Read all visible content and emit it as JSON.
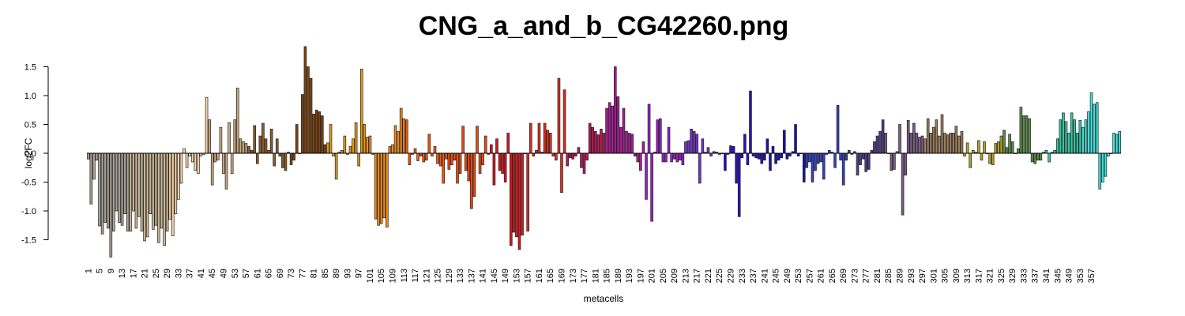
{
  "chart_data": {
    "type": "bar",
    "title": "CNG_a_and_b_CG42260.png",
    "xlabel": "metacells",
    "ylabel": "log2FC",
    "ylim": [
      -1.8,
      1.9
    ],
    "yticks": [
      -1.5,
      -1.0,
      -0.5,
      0.0,
      0.5,
      1.0,
      1.5
    ],
    "ytick_labels": [
      "-1.5",
      "-1.0",
      "-0.5",
      "0.0",
      "0.5",
      "1.0",
      "1.5"
    ],
    "xtick_labels": [
      "1",
      "5",
      "9",
      "13",
      "17",
      "21",
      "25",
      "29",
      "33",
      "37",
      "41",
      "45",
      "49",
      "53",
      "57",
      "61",
      "65",
      "69",
      "73",
      "77",
      "81",
      "85",
      "89",
      "93",
      "97",
      "101",
      "105",
      "109",
      "113",
      "117",
      "121",
      "125",
      "129",
      "133",
      "137",
      "141",
      "145",
      "149",
      "153",
      "157",
      "161",
      "165",
      "169",
      "173",
      "177",
      "181",
      "185",
      "189",
      "193",
      "197",
      "201",
      "205",
      "209",
      "213",
      "217",
      "221",
      "225",
      "229",
      "233",
      "237",
      "241",
      "245",
      "249",
      "253",
      "257",
      "261",
      "265",
      "269",
      "273",
      "277",
      "281",
      "285",
      "289",
      "293",
      "297",
      "301",
      "305",
      "309",
      "313",
      "317",
      "321",
      "325",
      "329",
      "333",
      "337",
      "341",
      "345",
      "349",
      "353",
      "357"
    ],
    "grid": false,
    "legend": "none",
    "values": [
      -0.1,
      -0.88,
      -0.45,
      -0.12,
      -1.26,
      -1.4,
      -1.2,
      -1.3,
      -1.8,
      -1.35,
      -1.0,
      -1.2,
      -1.25,
      -1.05,
      -1.35,
      -1.35,
      -1.0,
      -1.3,
      -1.1,
      -1.35,
      -1.52,
      -1.45,
      -1.05,
      -1.32,
      -1.25,
      -1.55,
      -1.3,
      -1.6,
      -1.35,
      -1.15,
      -1.43,
      -1.05,
      -0.8,
      -0.52,
      0.08,
      -0.25,
      -0.05,
      -0.15,
      -0.3,
      -0.35,
      -0.05,
      -0.02,
      0.97,
      0.58,
      -0.55,
      -0.15,
      -0.12,
      0.45,
      -0.35,
      -0.62,
      0.53,
      -0.35,
      0.58,
      1.13,
      0.25,
      0.2,
      0.17,
      0.12,
      0.05,
      0.48,
      -0.18,
      0.3,
      0.52,
      0.25,
      0.05,
      0.42,
      -0.22,
      0.25,
      -0.05,
      -0.25,
      -0.3,
      0.02,
      -0.2,
      -0.12,
      0.5,
      0.0,
      1.02,
      1.85,
      1.5,
      1.3,
      0.68,
      0.75,
      0.72,
      0.65,
      0.15,
      0.18,
      0.5,
      -0.05,
      -0.45,
      0.02,
      0.05,
      0.3,
      -0.02,
      0.12,
      0.25,
      0.53,
      -0.22,
      1.46,
      0.5,
      0.28,
      0.3,
      -0.02,
      -1.14,
      -1.25,
      -1.22,
      -1.12,
      -1.28,
      0.12,
      0.15,
      0.48,
      0.38,
      0.78,
      0.6,
      0.58,
      -0.2,
      -0.02,
      0.08,
      -0.13,
      -0.05,
      -0.15,
      -0.12,
      0.33,
      -0.05,
      0.12,
      -0.18,
      -0.22,
      -0.52,
      -0.1,
      -0.28,
      -0.2,
      -0.12,
      -0.52,
      -0.35,
      0.47,
      -0.3,
      -0.48,
      -0.96,
      -0.75,
      0.47,
      -0.35,
      -0.2,
      0.3,
      -0.02,
      0.15,
      -0.55,
      0.25,
      -0.3,
      -0.35,
      -0.5,
      0.35,
      -1.6,
      -1.37,
      -1.45,
      -1.67,
      -1.42,
      0.0,
      -1.35,
      0.52,
      -0.05,
      0.05,
      0.52,
      0.02,
      0.52,
      0.4,
      0.35,
      -0.05,
      -0.12,
      1.3,
      -0.68,
      1.1,
      -0.22,
      -0.08,
      -0.1,
      -0.05,
      0.1,
      -0.25,
      -0.35,
      -0.12,
      0.52,
      0.45,
      0.38,
      0.32,
      0.42,
      0.35,
      0.78,
      0.88,
      0.82,
      1.5,
      0.98,
      0.45,
      0.78,
      0.38,
      0.35,
      0.33,
      -0.05,
      -0.15,
      -0.3,
      0.2,
      -0.8,
      0.85,
      -1.18,
      0.02,
      0.58,
      0.6,
      -0.15,
      -0.15,
      0.45,
      -0.15,
      -0.1,
      -0.15,
      -0.12,
      -0.2,
      0.2,
      0.22,
      0.42,
      0.38,
      0.33,
      -0.52,
      0.25,
      0.02,
      0.1,
      -0.05,
      0.03,
      0.02,
      -0.02,
      0.0,
      -0.3,
      -0.02,
      0.13,
      0.12,
      -0.52,
      -1.1,
      -0.08,
      0.33,
      -0.2,
      1.08,
      -0.05,
      -0.08,
      -0.1,
      -0.18,
      -0.12,
      0.25,
      -0.3,
      0.12,
      -0.18,
      -0.12,
      -0.08,
      0.4,
      -0.1,
      -0.05,
      0.03,
      0.5,
      -0.05,
      0.0,
      -0.5,
      -0.25,
      -0.15,
      -0.5,
      -0.3,
      -0.18,
      -0.15,
      -0.45,
      -0.02,
      0.05,
      0.02,
      -0.25,
      0.83,
      -0.12,
      -0.55,
      -0.12,
      0.05,
      -0.02,
      0.03,
      -0.38,
      -0.2,
      -0.1,
      -0.32,
      -0.28,
      0.05,
      0.2,
      0.3,
      0.38,
      0.58,
      0.35,
      0.0,
      -0.3,
      -0.28,
      0.03,
      0.5,
      -1.07,
      -0.38,
      0.57,
      0.35,
      0.52,
      0.35,
      0.28,
      0.3,
      0.25,
      0.6,
      0.35,
      0.45,
      0.58,
      0.3,
      0.67,
      0.35,
      0.32,
      0.35,
      0.35,
      0.47,
      0.3,
      0.38,
      -0.05,
      0.18,
      -0.25,
      0.05,
      0.02,
      0.22,
      -0.12,
      0.2,
      0.0,
      -0.18,
      -0.2,
      0.17,
      0.2,
      0.3,
      0.4,
      0.1,
      0.33,
      0.2,
      0.0,
      0.08,
      0.8,
      0.65,
      0.65,
      0.6,
      -0.15,
      -0.18,
      -0.12,
      -0.12,
      0.02,
      0.05,
      -0.15,
      0.02,
      0.05,
      0.25,
      0.58,
      0.7,
      0.55,
      0.35,
      0.7,
      0.58,
      0.35,
      0.57,
      0.45,
      0.58,
      0.72,
      1.05,
      0.85,
      0.88,
      -0.62,
      -0.5,
      -0.4,
      -0.05,
      0.0,
      0.35,
      0.33,
      0.38
    ],
    "colors": [
      "#a8a297",
      "#c8b694",
      "#f5d2a7",
      "#c9a77e",
      "#8b5a2b",
      "#7d4412",
      "#de9a18",
      "#ee8c1c",
      "#ee5a10",
      "#ea4a12",
      "#d41820",
      "#d8301e",
      "#b81859",
      "#a81d97",
      "#9a1fc8",
      "#7434c8",
      "#2e10c0",
      "#1a12b4",
      "#3440bf",
      "#4d3e82",
      "#7a5c86",
      "#9b7e5a",
      "#b5a424",
      "#5f8c4c",
      "#38c6a0",
      "#40e2de"
    ]
  }
}
